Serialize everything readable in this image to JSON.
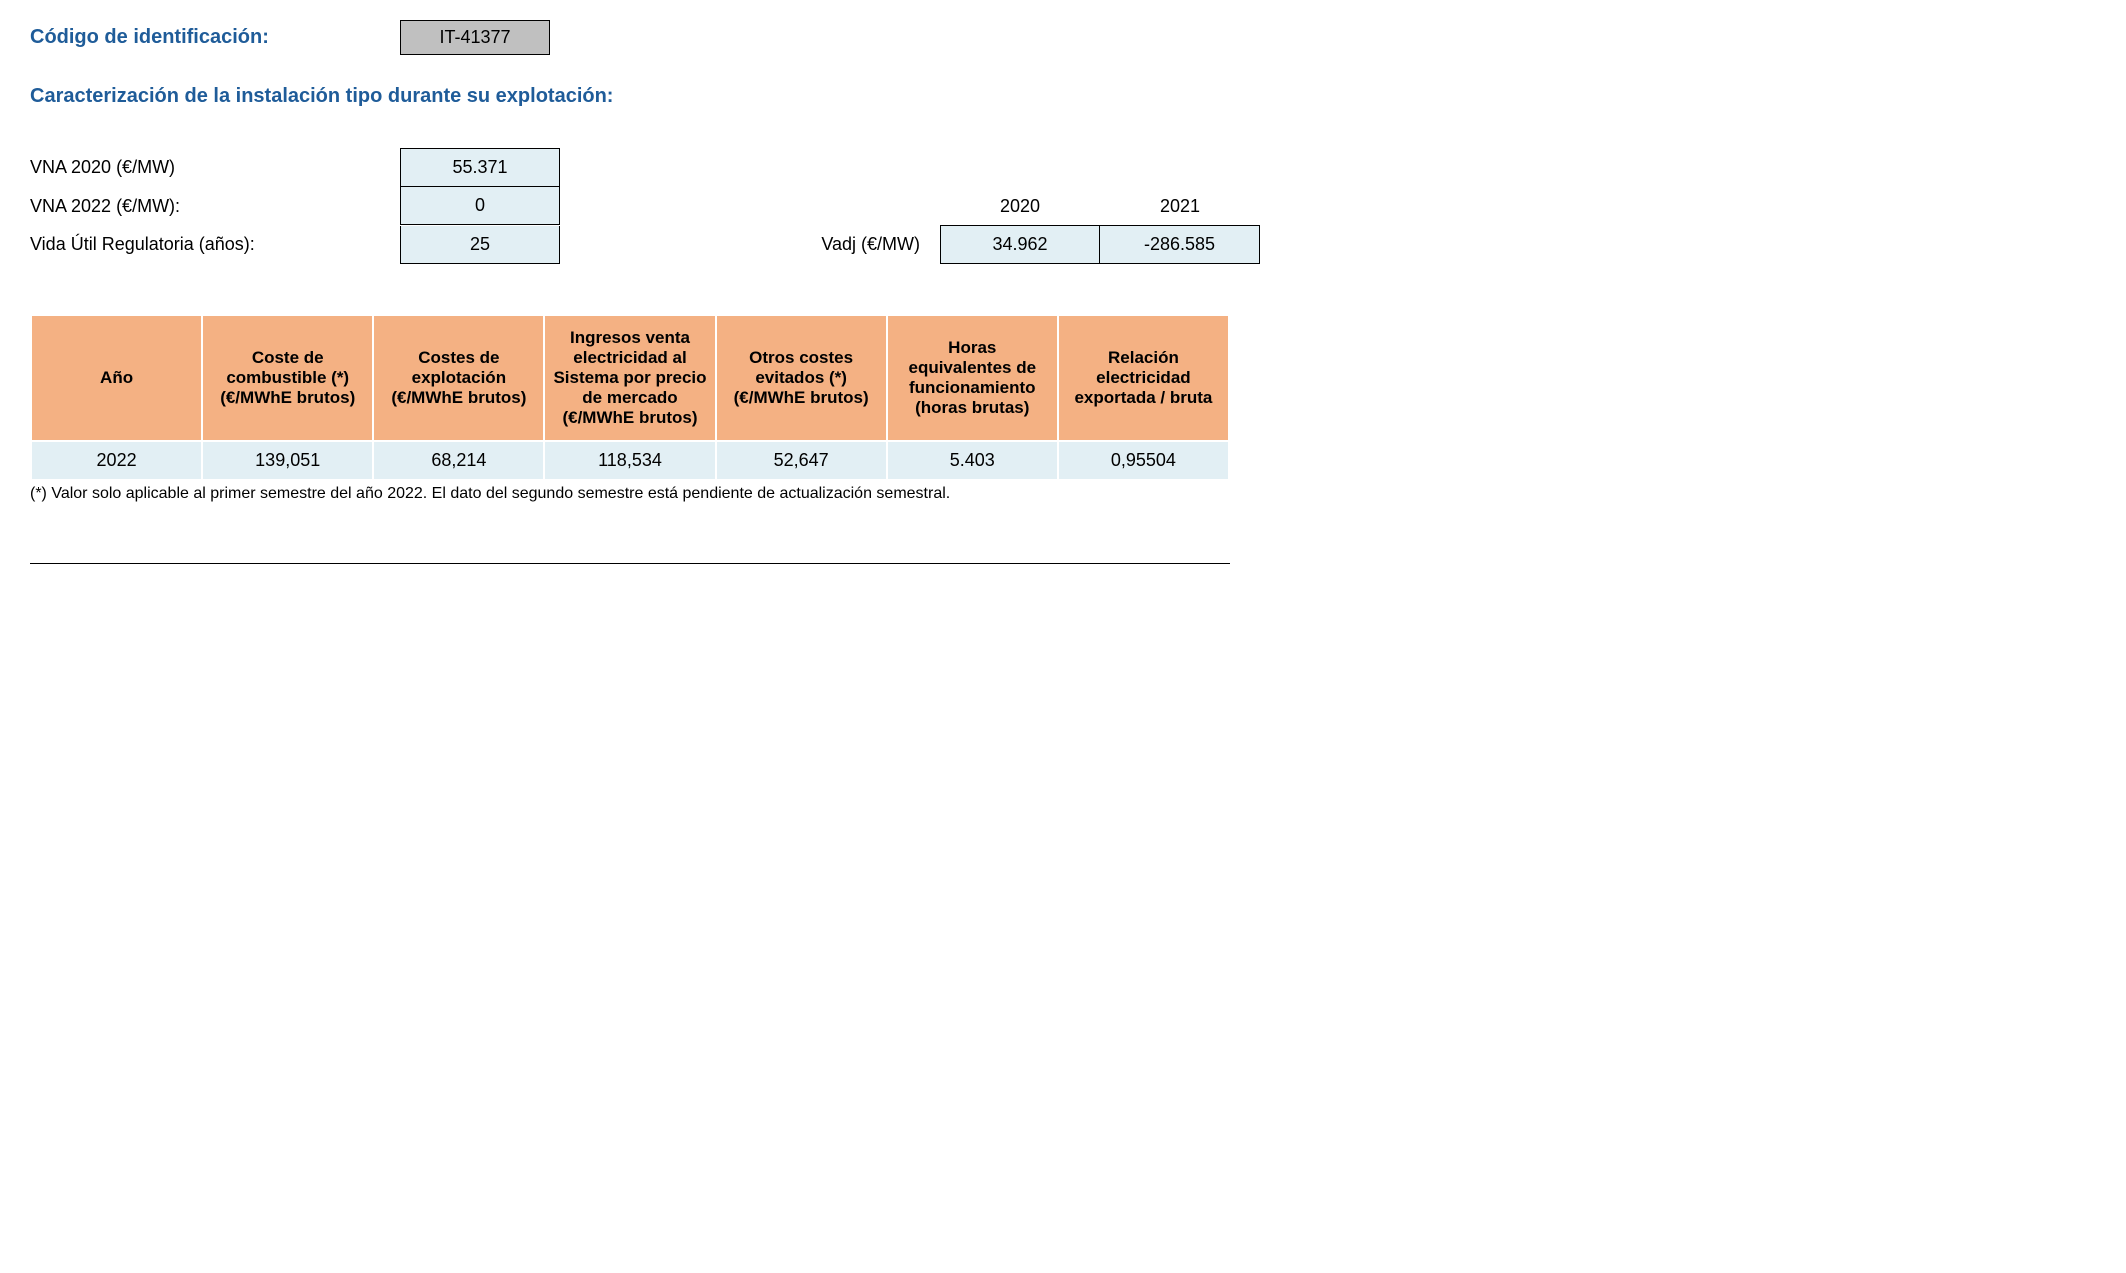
{
  "header": {
    "code_label": "Código de identificación:",
    "code_value": "IT-41377"
  },
  "section_title": "Caracterización de la instalación tipo durante su explotación:",
  "params": {
    "vna2020_label": "VNA 2020 (€/MW)",
    "vna2020_value": "55.371",
    "vna2022_label": "VNA 2022 (€/MW):",
    "vna2022_value": "0",
    "vida_label": "Vida Útil Regulatoria (años):",
    "vida_value": "25",
    "vadj_label": "Vadj (€/MW)",
    "year_2020": "2020",
    "year_2021": "2021",
    "vadj_2020": "34.962",
    "vadj_2021": "-286.585"
  },
  "table": {
    "headers": {
      "col1": "Año",
      "col2": "Coste de combustible (*) (€/MWhE brutos)",
      "col3": "Costes de explotación (€/MWhE brutos)",
      "col4": "Ingresos venta electricidad al Sistema por precio de mercado (€/MWhE brutos)",
      "col5": "Otros costes evitados (*) (€/MWhE brutos)",
      "col6": "Horas equivalentes de funcionamiento (horas brutas)",
      "col7": "Relación electricidad exportada / bruta"
    },
    "row": {
      "c1": "2022",
      "c2": "139,051",
      "c3": "68,214",
      "c4": "118,534",
      "c5": "52,647",
      "c6": "5.403",
      "c7": "0,95504"
    }
  },
  "footnote": "(*) Valor solo aplicable al primer semestre del año 2022. El dato del segundo semestre está pendiente de actualización semestral.",
  "styling": {
    "header_color": "#1f5c99",
    "code_bg": "#c0c0c0",
    "value_bg": "#e2eff4",
    "table_header_bg": "#f4b183",
    "border_color": "#000000",
    "table_border_color": "#ffffff",
    "body_font_size": 18,
    "header_font_size": 20
  }
}
